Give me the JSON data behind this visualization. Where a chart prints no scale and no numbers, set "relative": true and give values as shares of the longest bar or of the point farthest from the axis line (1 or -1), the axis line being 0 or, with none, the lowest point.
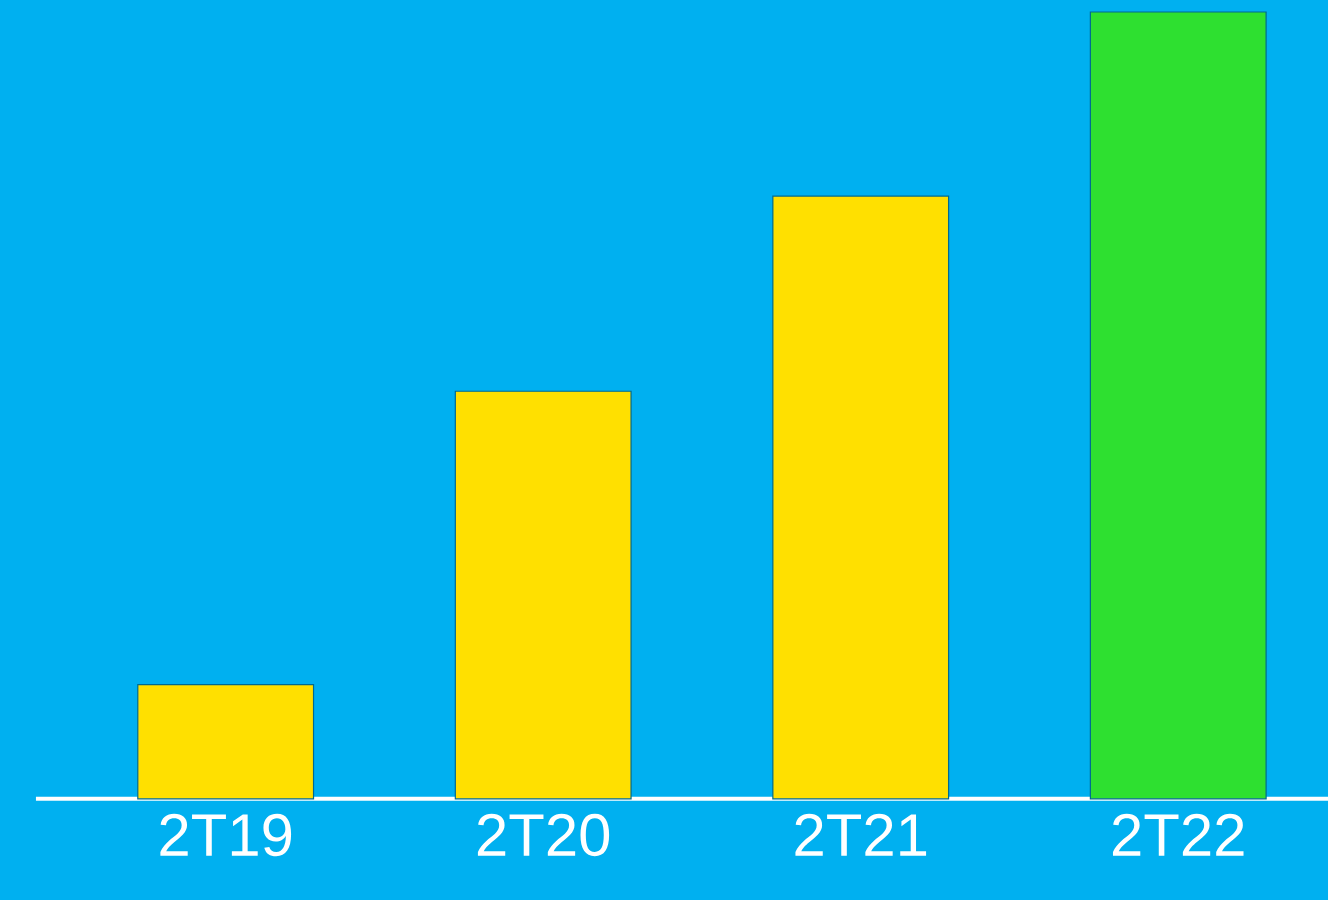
{
  "chart_data": {
    "type": "bar",
    "relative": true,
    "categories": [
      "2T19",
      "2T20",
      "2T21",
      "2T22"
    ],
    "values": [
      0.145,
      0.518,
      0.766,
      1
    ],
    "colors": [
      "#ffe000",
      "#ffe000",
      "#ffe000",
      "#2ee030"
    ]
  }
}
